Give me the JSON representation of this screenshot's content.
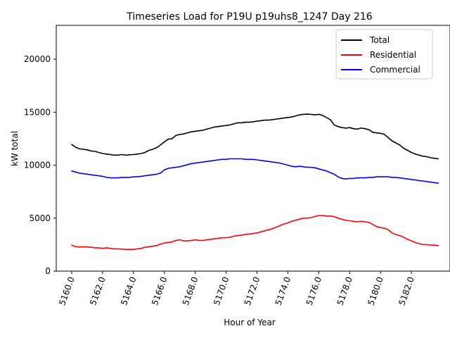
{
  "chart_data": {
    "type": "line",
    "title": "Timeseries Load for P19U p19uhs8_1247  Day 216",
    "xlabel": "Hour of Year",
    "ylabel": "kW total",
    "xlim": [
      5159.0,
      5184.5
    ],
    "ylim": [
      0,
      23200
    ],
    "x_ticks": [
      "5160.0",
      "5162.0",
      "5164.0",
      "5166.0",
      "5168.0",
      "5170.0",
      "5172.0",
      "5174.0",
      "5176.0",
      "5178.0",
      "5180.0",
      "5182.0"
    ],
    "x_tick_values": [
      5160,
      5162,
      5164,
      5166,
      5168,
      5170,
      5172,
      5174,
      5176,
      5178,
      5180,
      5182
    ],
    "y_ticks": [
      "0",
      "5000",
      "10000",
      "15000",
      "20000"
    ],
    "y_tick_values": [
      0,
      5000,
      10000,
      15000,
      20000
    ],
    "legend_position": "top-right",
    "x": [
      5160.0,
      5160.25,
      5160.5,
      5160.75,
      5161.0,
      5161.25,
      5161.5,
      5161.75,
      5162.0,
      5162.25,
      5162.5,
      5162.75,
      5163.0,
      5163.25,
      5163.5,
      5163.75,
      5164.0,
      5164.25,
      5164.5,
      5164.75,
      5165.0,
      5165.25,
      5165.5,
      5165.75,
      5166.0,
      5166.25,
      5166.5,
      5166.75,
      5167.0,
      5167.25,
      5167.5,
      5167.75,
      5168.0,
      5168.25,
      5168.5,
      5168.75,
      5169.0,
      5169.25,
      5169.5,
      5169.75,
      5170.0,
      5170.25,
      5170.5,
      5170.75,
      5171.0,
      5171.25,
      5171.5,
      5171.75,
      5172.0,
      5172.25,
      5172.5,
      5172.75,
      5173.0,
      5173.25,
      5173.5,
      5173.75,
      5174.0,
      5174.25,
      5174.5,
      5174.75,
      5175.0,
      5175.25,
      5175.5,
      5175.75,
      5176.0,
      5176.25,
      5176.5,
      5176.75,
      5177.0,
      5177.25,
      5177.5,
      5177.75,
      5178.0,
      5178.25,
      5178.5,
      5178.75,
      5179.0,
      5179.25,
      5179.5,
      5179.75,
      5180.0,
      5180.25,
      5180.5,
      5180.75,
      5181.0,
      5181.25,
      5181.5,
      5181.75,
      5182.0,
      5182.25,
      5182.5,
      5182.75,
      5183.0,
      5183.25,
      5183.5,
      5183.75
    ],
    "series": [
      {
        "name": "Total",
        "color": "#000000",
        "values": [
          11950,
          11700,
          11550,
          11500,
          11450,
          11350,
          11300,
          11200,
          11100,
          11050,
          11000,
          10950,
          10950,
          11000,
          10950,
          10980,
          11000,
          11050,
          11100,
          11200,
          11400,
          11500,
          11650,
          11900,
          12200,
          12450,
          12500,
          12800,
          12900,
          12950,
          13050,
          13150,
          13200,
          13250,
          13300,
          13400,
          13500,
          13600,
          13650,
          13700,
          13750,
          13800,
          13900,
          14000,
          14000,
          14050,
          14050,
          14100,
          14150,
          14200,
          14250,
          14250,
          14300,
          14350,
          14400,
          14450,
          14500,
          14550,
          14650,
          14750,
          14800,
          14820,
          14800,
          14750,
          14800,
          14700,
          14500,
          14300,
          13800,
          13650,
          13550,
          13500,
          13550,
          13450,
          13400,
          13500,
          13450,
          13350,
          13100,
          13050,
          13000,
          12900,
          12600,
          12300,
          12100,
          11900,
          11600,
          11400,
          11200,
          11050,
          10950,
          10850,
          10800,
          10700,
          10650,
          10600
        ]
      },
      {
        "name": "Residential",
        "color": "#ff0000",
        "values": [
          2450,
          2300,
          2280,
          2300,
          2280,
          2250,
          2200,
          2200,
          2150,
          2200,
          2150,
          2100,
          2100,
          2080,
          2050,
          2050,
          2050,
          2100,
          2150,
          2250,
          2300,
          2350,
          2400,
          2550,
          2650,
          2700,
          2750,
          2900,
          2950,
          2850,
          2850,
          2900,
          2950,
          2900,
          2900,
          2950,
          3000,
          3050,
          3100,
          3150,
          3150,
          3200,
          3300,
          3350,
          3400,
          3450,
          3500,
          3550,
          3600,
          3700,
          3800,
          3900,
          4000,
          4150,
          4300,
          4450,
          4550,
          4700,
          4800,
          4900,
          5000,
          5000,
          5050,
          5150,
          5250,
          5250,
          5200,
          5200,
          5150,
          5000,
          4900,
          4800,
          4750,
          4700,
          4650,
          4700,
          4650,
          4600,
          4400,
          4200,
          4100,
          4050,
          3900,
          3600,
          3450,
          3350,
          3200,
          3000,
          2850,
          2700,
          2600,
          2500,
          2500,
          2450,
          2450,
          2400
        ]
      },
      {
        "name": "Commercial",
        "color": "#0000ff",
        "values": [
          9450,
          9350,
          9250,
          9200,
          9150,
          9100,
          9050,
          9000,
          8950,
          8850,
          8800,
          8800,
          8800,
          8850,
          8850,
          8850,
          8900,
          8900,
          8950,
          9000,
          9050,
          9100,
          9150,
          9250,
          9550,
          9700,
          9750,
          9800,
          9850,
          9950,
          10050,
          10150,
          10200,
          10250,
          10300,
          10350,
          10400,
          10450,
          10500,
          10550,
          10550,
          10600,
          10600,
          10600,
          10600,
          10550,
          10550,
          10550,
          10500,
          10450,
          10400,
          10350,
          10300,
          10250,
          10200,
          10100,
          10000,
          9900,
          9850,
          9900,
          9850,
          9800,
          9800,
          9750,
          9650,
          9550,
          9450,
          9300,
          9150,
          8900,
          8750,
          8700,
          8750,
          8750,
          8800,
          8800,
          8800,
          8850,
          8850,
          8900,
          8900,
          8900,
          8900,
          8850,
          8850,
          8800,
          8750,
          8700,
          8650,
          8600,
          8550,
          8500,
          8450,
          8400,
          8350,
          8300
        ]
      }
    ]
  }
}
